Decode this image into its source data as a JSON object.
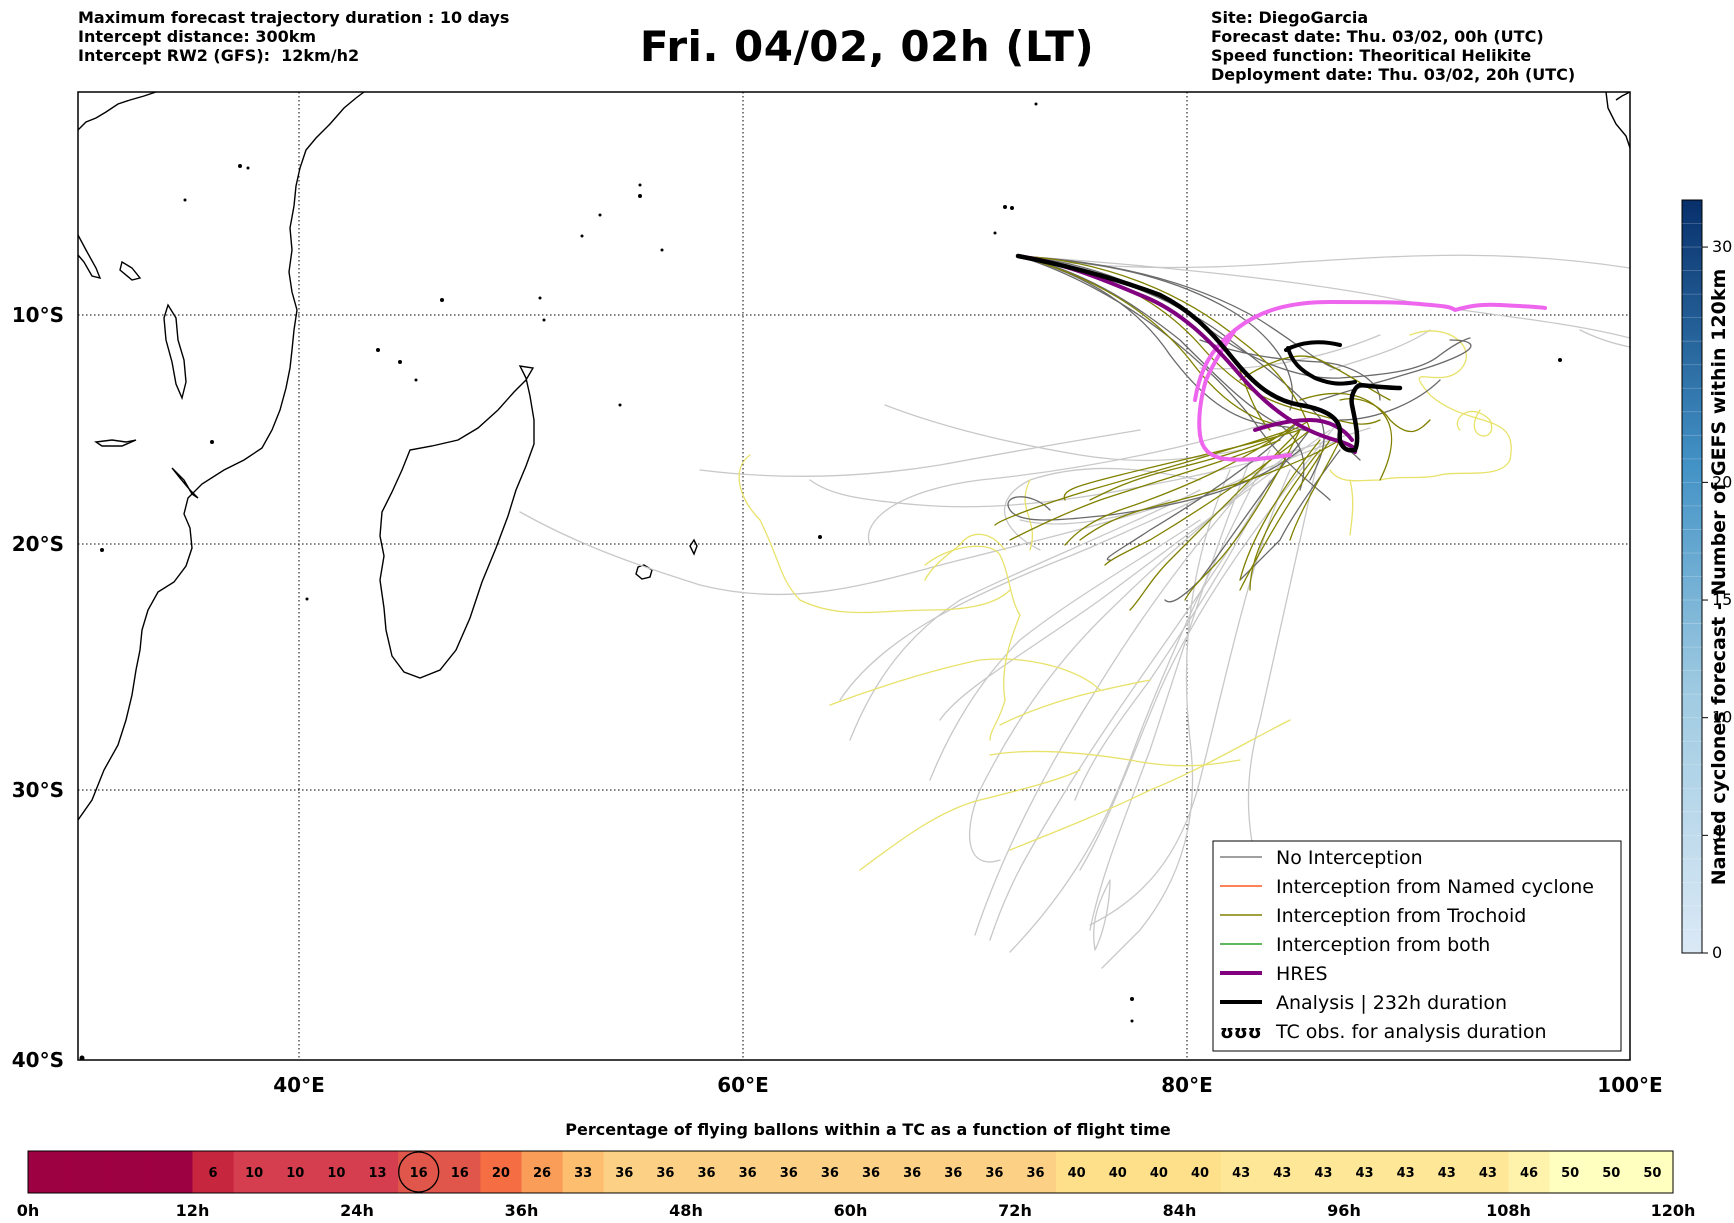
{
  "header": {
    "left_lines": [
      "Maximum forecast trajectory duration : 10 days",
      "Intercept distance: 300km",
      "Intercept RW2 (GFS):  12km/h2"
    ],
    "title": "Fri. 04/02, 02h (LT)",
    "right_lines": [
      "Site: DiegoGarcia",
      "Forecast date: Thu. 03/02, 00h (UTC)",
      "Speed function: Theoritical Helikite",
      "Deployment date: Thu. 03/02, 20h (UTC)"
    ]
  },
  "map": {
    "lon_ticks": [
      "40°E",
      "60°E",
      "80°E",
      "100°E"
    ],
    "lat_ticks": [
      "10°S",
      "20°S",
      "30°S",
      "40°S"
    ]
  },
  "legend": {
    "items": [
      {
        "label": "No Interception",
        "color": "#808080",
        "style": "thin"
      },
      {
        "label": "Interception from Named cyclone",
        "color": "#ff5a1f",
        "style": "thin"
      },
      {
        "label": "Interception from Trochoid",
        "color": "#808000",
        "style": "thin"
      },
      {
        "label": "Interception from both",
        "color": "#2ca02c",
        "style": "thin"
      },
      {
        "label": "HRES",
        "color": "#800080",
        "style": "thick"
      },
      {
        "label": "Analysis | 232h duration",
        "color": "#000000",
        "style": "thick"
      },
      {
        "label": "TC obs. for analysis duration",
        "color": "#000000",
        "style": "symbol",
        "symbol": "ʊʊʊ"
      }
    ]
  },
  "colorbar": {
    "label": "Named cyclones forecast - Number of GEFS within 120km",
    "ticks": [
      "0",
      "5",
      "10",
      "15",
      "20",
      "30"
    ],
    "colors": [
      "#dbe9f6",
      "#08306b"
    ]
  },
  "chart_data": {
    "type": "heatmap",
    "title": "Percentage of flying ballons within a TC as a function of flight time",
    "time_ticks": [
      "0h",
      "12h",
      "24h",
      "36h",
      "48h",
      "60h",
      "72h",
      "84h",
      "96h",
      "108h",
      "120h"
    ],
    "time_range_h": [
      0,
      120
    ],
    "bin_hours": 3,
    "cells": [
      null,
      null,
      null,
      null,
      6,
      10,
      10,
      10,
      13,
      16,
      16,
      20,
      26,
      33,
      36,
      36,
      36,
      36,
      36,
      36,
      36,
      36,
      36,
      36,
      36,
      40,
      40,
      40,
      40,
      43,
      43,
      43,
      43,
      43,
      43,
      43,
      46,
      50,
      50,
      50
    ],
    "highlighted_cell": 9
  }
}
